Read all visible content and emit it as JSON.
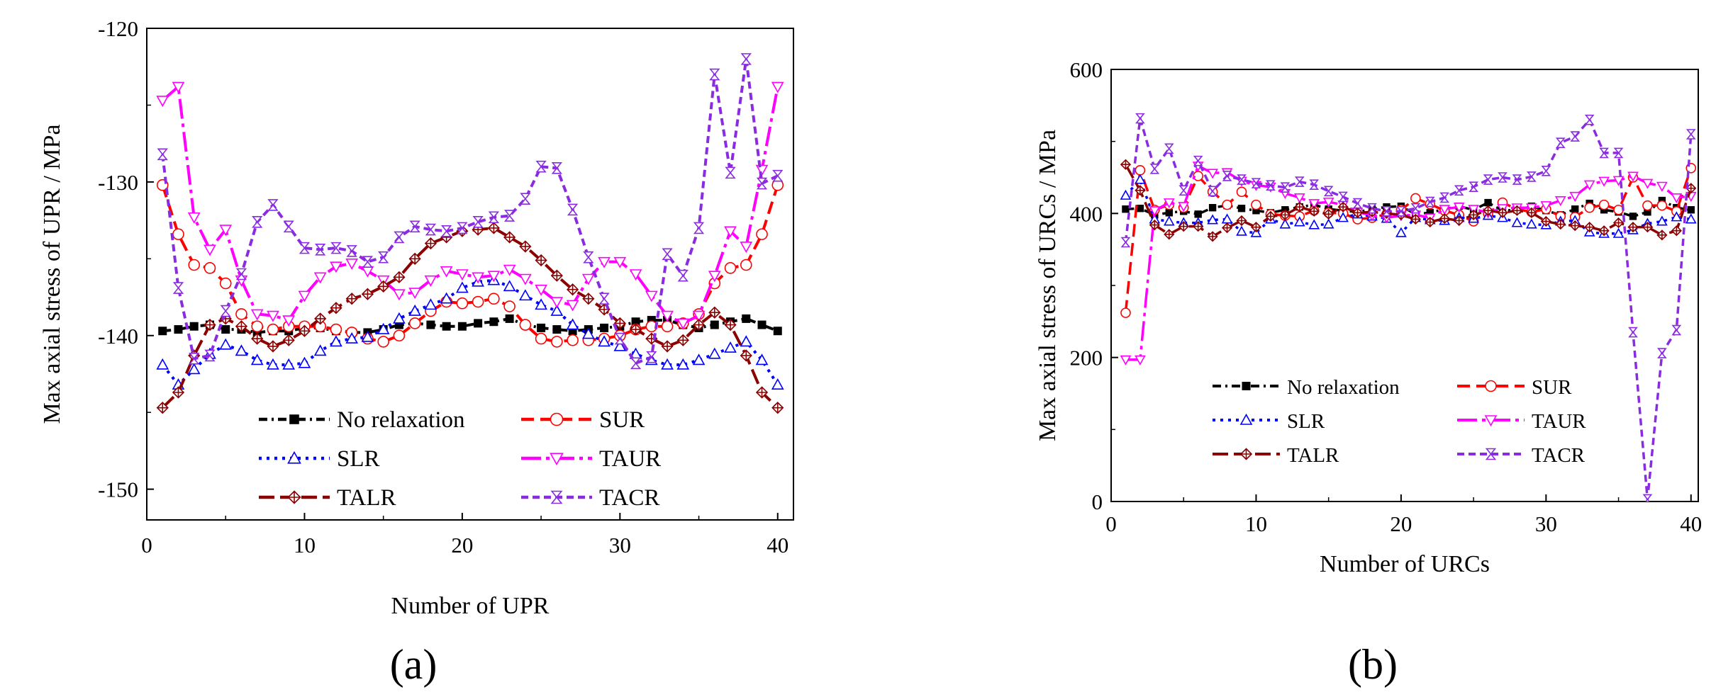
{
  "chart_data": [
    {
      "panel": "a",
      "panel_label": "(a)",
      "type": "line",
      "xlabel": "Number of UPR",
      "ylabel": "Max axial stress of UPR / MPa",
      "xlim": [
        0,
        41
      ],
      "ylim": [
        -152,
        -120
      ],
      "xticks": [
        0,
        10,
        20,
        30,
        40
      ],
      "yticks": [
        -150,
        -140,
        -130,
        -120
      ],
      "xtick_labels": [
        "0",
        "10",
        "20",
        "30",
        "40"
      ],
      "ytick_labels": [
        "-150",
        "-140",
        "-130",
        "-120"
      ],
      "legend_position": "lower-center",
      "x": [
        1,
        2,
        3,
        4,
        5,
        6,
        7,
        8,
        9,
        10,
        11,
        12,
        13,
        14,
        15,
        16,
        17,
        18,
        19,
        20,
        21,
        22,
        23,
        24,
        25,
        26,
        27,
        28,
        29,
        30,
        31,
        32,
        33,
        34,
        35,
        36,
        37,
        38,
        39,
        40
      ],
      "series": [
        {
          "name": "No relaxation",
          "color": "#000000",
          "marker": "square",
          "dash": "12 6 3 6",
          "values": [
            -139.7,
            -139.6,
            -139.4,
            -139.3,
            -139.6,
            -139.6,
            -139.8,
            -139.7,
            -139.7,
            -139.5,
            -139.5,
            -139.7,
            -139.8,
            -139.8,
            -139.6,
            -139.3,
            -139.2,
            -139.3,
            -139.4,
            -139.4,
            -139.2,
            -139.1,
            -138.9,
            -139.3,
            -139.5,
            -139.6,
            -139.7,
            -139.6,
            -139.5,
            -139.4,
            -139.1,
            -139.0,
            -139.0,
            -139.3,
            -139.5,
            -139.3,
            -139.1,
            -138.9,
            -139.3,
            -139.7
          ]
        },
        {
          "name": "SUR",
          "color": "#ff0000",
          "marker": "circle",
          "dash": "18 9",
          "values": [
            -130.2,
            -133.4,
            -135.4,
            -135.6,
            -136.6,
            -138.6,
            -139.4,
            -139.6,
            -139.4,
            -139.4,
            -139.4,
            -139.6,
            -139.8,
            -140.2,
            -140.4,
            -140.0,
            -139.2,
            -138.4,
            -137.8,
            -137.9,
            -137.8,
            -137.6,
            -138.1,
            -139.3,
            -140.2,
            -140.4,
            -140.3,
            -140.3,
            -140.2,
            -140.0,
            -139.6,
            -139.4,
            -139.4,
            -139.2,
            -138.6,
            -136.6,
            -135.6,
            -135.4,
            -133.4,
            -130.2
          ]
        },
        {
          "name": "SLR",
          "color": "#0000ff",
          "marker": "triangle",
          "dash": "4 7",
          "values": [
            -141.9,
            -143.2,
            -142.2,
            -141.2,
            -140.6,
            -141.0,
            -141.6,
            -141.9,
            -141.9,
            -141.8,
            -141.0,
            -140.4,
            -140.2,
            -140.1,
            -139.6,
            -138.9,
            -138.4,
            -138.0,
            -137.6,
            -136.9,
            -136.5,
            -136.4,
            -136.8,
            -137.4,
            -138.0,
            -138.4,
            -139.3,
            -139.9,
            -140.4,
            -140.7,
            -141.2,
            -141.6,
            -141.9,
            -141.9,
            -141.6,
            -141.2,
            -140.8,
            -140.4,
            -141.6,
            -143.2
          ]
        },
        {
          "name": "TAUR",
          "color": "#ff00ff",
          "marker": "triangle-down",
          "dash": "28 7 5 7",
          "values": [
            -124.7,
            -123.8,
            -132.3,
            -134.4,
            -133.1,
            -136.4,
            -138.6,
            -138.7,
            -139.0,
            -137.4,
            -136.2,
            -135.5,
            -135.3,
            -135.8,
            -136.4,
            -137.3,
            -137.2,
            -136.4,
            -135.8,
            -136.0,
            -136.2,
            -136.1,
            -135.7,
            -136.3,
            -137.0,
            -137.8,
            -138.0,
            -136.3,
            -135.2,
            -135.2,
            -136.0,
            -137.4,
            -138.7,
            -139.2,
            -138.7,
            -136.1,
            -133.2,
            -134.2,
            -129.2,
            -123.8
          ]
        },
        {
          "name": "TALR",
          "color": "#8b0000",
          "marker": "diamond-plus",
          "dash": "22 8",
          "values": [
            -144.7,
            -143.7,
            -141.3,
            -139.3,
            -138.9,
            -139.4,
            -140.2,
            -140.7,
            -140.3,
            -139.7,
            -138.9,
            -138.2,
            -137.6,
            -137.3,
            -136.8,
            -136.2,
            -135.0,
            -134.0,
            -133.6,
            -133.2,
            -133.1,
            -133.0,
            -133.6,
            -134.2,
            -135.1,
            -136.1,
            -137.0,
            -137.6,
            -138.3,
            -139.2,
            -139.6,
            -140.2,
            -140.7,
            -140.3,
            -139.3,
            -138.5,
            -139.3,
            -141.3,
            -143.7,
            -144.7
          ]
        },
        {
          "name": "TACR",
          "color": "#8a2be2",
          "marker": "hourglass",
          "dash": "10 6",
          "values": [
            -128.2,
            -136.9,
            -141.5,
            -141.3,
            -138.4,
            -136.0,
            -132.6,
            -131.5,
            -132.9,
            -134.3,
            -134.4,
            -134.3,
            -134.5,
            -135.2,
            -134.9,
            -133.6,
            -132.9,
            -133.1,
            -133.2,
            -133.0,
            -132.6,
            -132.3,
            -132.2,
            -131.1,
            -129.0,
            -129.1,
            -131.8,
            -134.9,
            -137.6,
            -140.2,
            -141.8,
            -141.4,
            -134.7,
            -136.1,
            -133.0,
            -123.0,
            -129.4,
            -122.0,
            -130.1,
            -129.6
          ]
        }
      ]
    },
    {
      "panel": "b",
      "panel_label": "(b)",
      "type": "line",
      "xlabel": "Number of URCs",
      "ylabel": "Max axial stress of URCs / MPa",
      "xlim": [
        0,
        40.5
      ],
      "ylim": [
        0,
        600
      ],
      "xticks": [
        0,
        10,
        20,
        30,
        40
      ],
      "yticks": [
        0,
        200,
        400,
        600
      ],
      "xtick_labels": [
        "0",
        "10",
        "20",
        "30",
        "40"
      ],
      "ytick_labels": [
        "0",
        "200",
        "400",
        "600"
      ],
      "legend_position": "center-left",
      "x": [
        1,
        2,
        3,
        4,
        5,
        6,
        7,
        8,
        9,
        10,
        11,
        12,
        13,
        14,
        15,
        16,
        17,
        18,
        19,
        20,
        21,
        22,
        23,
        24,
        25,
        26,
        27,
        28,
        29,
        30,
        31,
        32,
        33,
        34,
        35,
        36,
        37,
        38,
        39,
        40
      ],
      "series": [
        {
          "name": "No relaxation",
          "color": "#000000",
          "marker": "square",
          "dash": "12 6 3 6",
          "values": [
            406,
            407,
            398,
            401,
            403,
            399,
            408,
            411,
            407,
            404,
            401,
            405,
            409,
            412,
            406,
            404,
            402,
            406,
            409,
            410,
            399,
            401,
            406,
            410,
            405,
            415,
            404,
            405,
            410,
            404,
            398,
            406,
            414,
            405,
            402,
            396,
            402,
            418,
            408,
            405
          ]
        },
        {
          "name": "SUR",
          "color": "#ff0000",
          "marker": "circle",
          "dash": "18 9",
          "values": [
            262,
            460,
            405,
            412,
            408,
            452,
            430,
            412,
            430,
            412,
            399,
            397,
            396,
            404,
            401,
            400,
            392,
            394,
            399,
            405,
            421,
            413,
            404,
            398,
            389,
            400,
            415,
            406,
            402,
            406,
            396,
            395,
            408,
            412,
            405,
            450,
            411,
            411,
            403,
            463
          ]
        },
        {
          "name": "SLR",
          "color": "#0000ff",
          "marker": "triangle",
          "dash": "4 7",
          "values": [
            425,
            447,
            392,
            389,
            387,
            387,
            391,
            392,
            375,
            373,
            392,
            385,
            388,
            384,
            385,
            394,
            399,
            396,
            393,
            373,
            394,
            391,
            390,
            394,
            393,
            397,
            394,
            387,
            385,
            384,
            389,
            390,
            374,
            372,
            372,
            377,
            386,
            389,
            395,
            392
          ]
        },
        {
          "name": "TAUR",
          "color": "#ff00ff",
          "marker": "triangle-down",
          "dash": "28 7 5 7",
          "values": [
            197,
            197,
            404,
            415,
            410,
            466,
            456,
            457,
            445,
            439,
            437,
            428,
            422,
            414,
            416,
            412,
            402,
            397,
            394,
            397,
            398,
            394,
            406,
            409,
            406,
            401,
            407,
            408,
            408,
            411,
            418,
            424,
            440,
            445,
            446,
            452,
            442,
            438,
            422,
            424
          ]
        },
        {
          "name": "TALR",
          "color": "#8b0000",
          "marker": "diamond-plus",
          "dash": "22 8",
          "values": [
            468,
            432,
            384,
            371,
            382,
            382,
            368,
            380,
            390,
            381,
            396,
            398,
            409,
            403,
            399,
            409,
            401,
            402,
            400,
            398,
            392,
            388,
            393,
            390,
            398,
            404,
            401,
            404,
            401,
            389,
            385,
            383,
            381,
            376,
            387,
            381,
            381,
            370,
            376,
            435
          ]
        },
        {
          "name": "TACR",
          "color": "#8a2be2",
          "marker": "hourglass",
          "dash": "10 6",
          "values": [
            360,
            532,
            462,
            490,
            432,
            473,
            431,
            452,
            447,
            442,
            439,
            436,
            444,
            440,
            431,
            423,
            414,
            407,
            403,
            403,
            407,
            416,
            422,
            432,
            437,
            447,
            450,
            447,
            451,
            459,
            498,
            507,
            530,
            484,
            484,
            235,
            3,
            206,
            238,
            510
          ]
        }
      ]
    }
  ]
}
